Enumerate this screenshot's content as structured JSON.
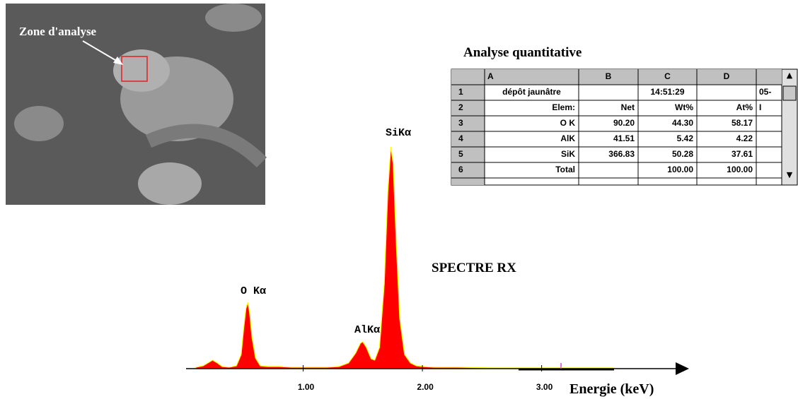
{
  "image": {
    "label": "Zone d'analyse"
  },
  "table": {
    "title": "Analyse quantitative",
    "columns": [
      "A",
      "B",
      "C",
      "D"
    ],
    "row_numbers": [
      "1",
      "2",
      "3",
      "4",
      "5",
      "6"
    ],
    "rows": [
      [
        "dépôt jaunâtre",
        null,
        "14:51:29",
        null,
        "05-"
      ],
      [
        "Elem:",
        "Net",
        "Wt%",
        "At%",
        "I"
      ],
      [
        "O K",
        "90.20",
        "44.30",
        "58.17",
        null
      ],
      [
        "AlK",
        "41.51",
        "5.42",
        "4.22",
        null
      ],
      [
        "SiK",
        "366.83",
        "50.28",
        "37.61",
        null
      ],
      [
        "Total",
        null,
        "100.00",
        "100.00",
        null
      ]
    ]
  },
  "chart_data": {
    "type": "area",
    "title": "SPECTRE RX",
    "x_label": "Energie (keV)",
    "annotations": [
      "SiKα",
      "O Kα",
      "AlKα"
    ],
    "fill": "#ff0000",
    "line_color": "#ffff00",
    "x": [
      0.1,
      0.16,
      0.2,
      0.24,
      0.28,
      0.32,
      0.38,
      0.44,
      0.48,
      0.5,
      0.52,
      0.535,
      0.55,
      0.57,
      0.6,
      0.64,
      0.7,
      0.8,
      0.9,
      1.0,
      1.1,
      1.2,
      1.3,
      1.38,
      1.44,
      1.48,
      1.5,
      1.53,
      1.57,
      1.6,
      1.64,
      1.68,
      1.71,
      1.735,
      1.755,
      1.78,
      1.81,
      1.85,
      1.9,
      1.95,
      2.0,
      2.1,
      2.3,
      2.6,
      2.9,
      3.2,
      3.6
    ],
    "values": [
      2,
      4,
      8,
      12,
      8,
      3,
      2,
      4,
      20,
      55,
      85,
      94,
      80,
      45,
      15,
      4,
      3,
      3,
      2,
      2,
      2,
      2,
      3,
      8,
      22,
      36,
      38,
      30,
      14,
      12,
      30,
      120,
      250,
      314,
      290,
      180,
      70,
      20,
      8,
      4,
      3,
      2,
      2,
      1,
      1,
      1,
      1
    ],
    "xlim": [
      0,
      4.1
    ],
    "ylim": [
      0,
      320
    ],
    "xticks": [
      {
        "value": 1,
        "label": "1.00"
      },
      {
        "value": 2,
        "label": "2.00"
      },
      {
        "value": 3,
        "label": "3.00"
      }
    ]
  }
}
